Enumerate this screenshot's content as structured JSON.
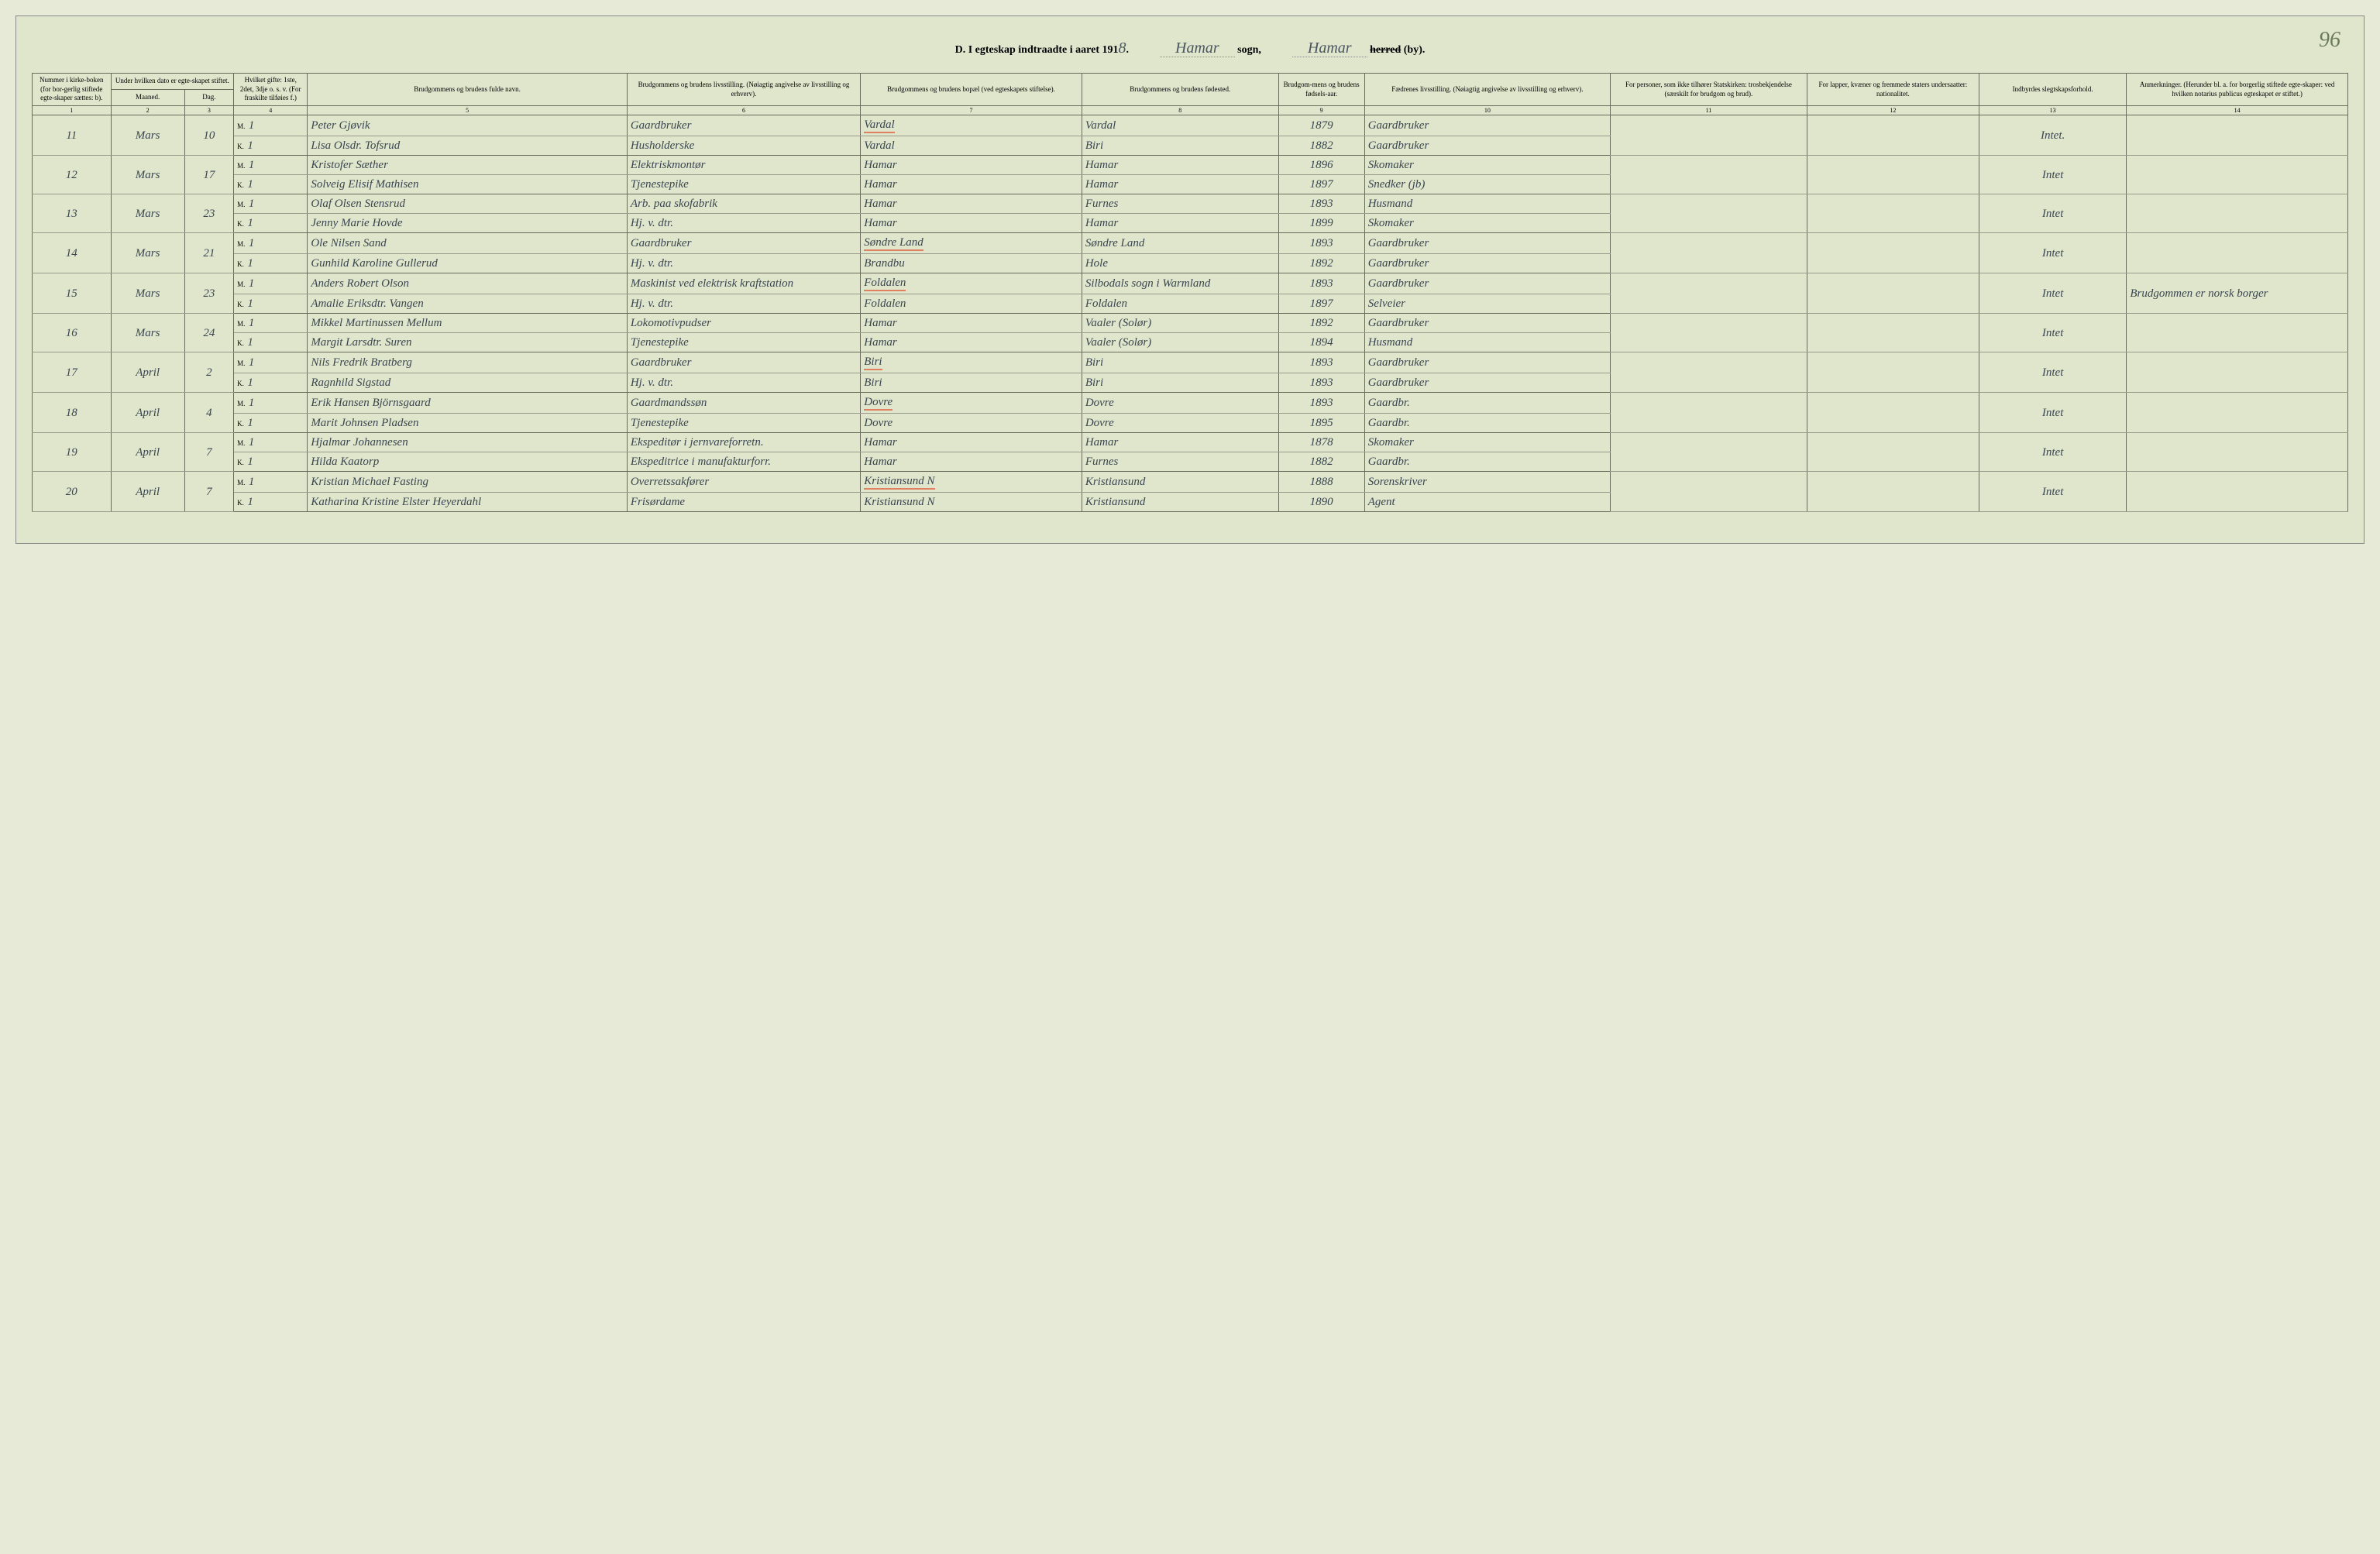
{
  "page_number": "96",
  "title": {
    "prefix": "D.  I egteskap indtraadte i aaret 191",
    "year_end": "8",
    "sogn_label": "sogn,",
    "sogn_value": "Hamar",
    "herred_label_strike": "herred",
    "herred_label_suffix": " (by).",
    "herred_value": "Hamar"
  },
  "headers": {
    "c1": "Nummer i kirke-boken (for bor-gerlig stiftede egte-skaper sættes: b).",
    "c2_3": "Under hvilken dato er egte-skapet stiftet.",
    "c2": "Maaned.",
    "c3": "Dag.",
    "c4": "Hvilket gifte: 1ste, 2det, 3dje o. s. v. (For fraskilte tilføies f.)",
    "c5": "Brudgommens og brudens fulde navn.",
    "c6": "Brudgommens og brudens livsstilling. (Nøiagtig angivelse av livsstilling og erhverv).",
    "c7": "Brudgommens og brudens bopæl (ved egteskapets stiftelse).",
    "c8": "Brudgommens og brudens fødested.",
    "c9": "Brudgom-mens og brudens fødsels-aar.",
    "c10": "Fædrenes livsstilling. (Nøiagtig angivelse av livsstilling og erhverv).",
    "c11": "For personer, som ikke tilhører Statskirken: trosbekjendelse (særskilt for brudgom og brud).",
    "c12": "For lapper, kvæner og fremmede staters undersaatter: nationalitet.",
    "c13": "Indbyrdes slegtskapsforhold.",
    "c14": "Anmerkninger. (Herunder bl. a. for borgerlig stiftede egte-skaper: ved hvilken notarius publicus egteskapet er stiftet.)"
  },
  "colnums": [
    "1",
    "2",
    "3",
    "4",
    "5",
    "6",
    "7",
    "8",
    "9",
    "10",
    "11",
    "12",
    "13",
    "14"
  ],
  "entries": [
    {
      "num": "11",
      "month": "Mars",
      "day": "10",
      "m": {
        "mk": "M.",
        "g": "1",
        "name": "Peter Gjøvik",
        "occ": "Gaardbruker",
        "res": "Vardal",
        "birth": "Vardal",
        "year": "1879",
        "father": "Gaardbruker"
      },
      "k": {
        "mk": "K.",
        "g": "1",
        "name": "Lisa Olsdr. Tofsrud",
        "occ": "Husholderske",
        "res": "Vardal",
        "birth": "Biri",
        "year": "1882",
        "father": "Gaardbruker"
      },
      "c13": "Intet.",
      "c14": ""
    },
    {
      "num": "12",
      "month": "Mars",
      "day": "17",
      "m": {
        "mk": "M.",
        "g": "1",
        "name": "Kristofer Sæther",
        "occ": "Elektriskmontør",
        "res": "Hamar",
        "birth": "Hamar",
        "year": "1896",
        "father": "Skomaker"
      },
      "k": {
        "mk": "K.",
        "g": "1",
        "name": "Solveig Elisif Mathisen",
        "occ": "Tjenestepike",
        "res": "Hamar",
        "birth": "Hamar",
        "year": "1897",
        "father": "Snedker (jb)"
      },
      "c13": "Intet",
      "c14": ""
    },
    {
      "num": "13",
      "month": "Mars",
      "day": "23",
      "m": {
        "mk": "M.",
        "g": "1",
        "name": "Olaf Olsen Stensrud",
        "occ": "Arb. paa skofabrik",
        "res": "Hamar",
        "birth": "Furnes",
        "year": "1893",
        "father": "Husmand"
      },
      "k": {
        "mk": "K.",
        "g": "1",
        "name": "Jenny Marie Hovde",
        "occ": "Hj. v. dtr.",
        "res": "Hamar",
        "birth": "Hamar",
        "year": "1899",
        "father": "Skomaker"
      },
      "c13": "Intet",
      "c14": ""
    },
    {
      "num": "14",
      "month": "Mars",
      "day": "21",
      "m": {
        "mk": "M.",
        "g": "1",
        "name": "Ole Nilsen Sand",
        "occ": "Gaardbruker",
        "res": "Søndre Land",
        "birth": "Søndre Land",
        "year": "1893",
        "father": "Gaardbruker"
      },
      "k": {
        "mk": "K.",
        "g": "1",
        "name": "Gunhild Karoline Gullerud",
        "occ": "Hj. v. dtr.",
        "res": "Brandbu",
        "birth": "Hole",
        "year": "1892",
        "father": "Gaardbruker"
      },
      "c13": "Intet",
      "c14": ""
    },
    {
      "num": "15",
      "month": "Mars",
      "day": "23",
      "m": {
        "mk": "M.",
        "g": "1",
        "name": "Anders Robert Olson",
        "occ": "Maskinist ved elektrisk kraftstation",
        "res": "Foldalen",
        "birth": "Silbodals sogn i Warmland",
        "year": "1893",
        "father": "Gaardbruker"
      },
      "k": {
        "mk": "K.",
        "g": "1",
        "name": "Amalie Eriksdtr. Vangen",
        "occ": "Hj. v. dtr.",
        "res": "Foldalen",
        "birth": "Foldalen",
        "year": "1897",
        "father": "Selveier"
      },
      "c13": "Intet",
      "c14": "Brudgommen er norsk borger"
    },
    {
      "num": "16",
      "month": "Mars",
      "day": "24",
      "m": {
        "mk": "M.",
        "g": "1",
        "name": "Mikkel Martinussen Mellum",
        "occ": "Lokomotivpudser",
        "res": "Hamar",
        "birth": "Vaaler (Solør)",
        "year": "1892",
        "father": "Gaardbruker"
      },
      "k": {
        "mk": "K.",
        "g": "1",
        "name": "Margit Larsdtr. Suren",
        "occ": "Tjenestepike",
        "res": "Hamar",
        "birth": "Vaaler (Solør)",
        "year": "1894",
        "father": "Husmand"
      },
      "c13": "Intet",
      "c14": ""
    },
    {
      "num": "17",
      "month": "April",
      "day": "2",
      "m": {
        "mk": "M.",
        "g": "1",
        "name": "Nils Fredrik Bratberg",
        "occ": "Gaardbruker",
        "res": "Biri",
        "birth": "Biri",
        "year": "1893",
        "father": "Gaardbruker"
      },
      "k": {
        "mk": "K.",
        "g": "1",
        "name": "Ragnhild Sigstad",
        "occ": "Hj. v. dtr.",
        "res": "Biri",
        "birth": "Biri",
        "year": "1893",
        "father": "Gaardbruker"
      },
      "c13": "Intet",
      "c14": ""
    },
    {
      "num": "18",
      "month": "April",
      "day": "4",
      "m": {
        "mk": "M.",
        "g": "1",
        "name": "Erik Hansen Björnsgaard",
        "occ": "Gaardmandssøn",
        "res": "Dovre",
        "birth": "Dovre",
        "year": "1893",
        "father": "Gaardbr."
      },
      "k": {
        "mk": "K.",
        "g": "1",
        "name": "Marit Johnsen Pladsen",
        "occ": "Tjenestepike",
        "res": "Dovre",
        "birth": "Dovre",
        "year": "1895",
        "father": "Gaardbr."
      },
      "c13": "Intet",
      "c14": ""
    },
    {
      "num": "19",
      "month": "April",
      "day": "7",
      "m": {
        "mk": "M.",
        "g": "1",
        "name": "Hjalmar Johannesen",
        "occ": "Ekspeditør i jernvareforretn.",
        "res": "Hamar",
        "birth": "Hamar",
        "year": "1878",
        "father": "Skomaker"
      },
      "k": {
        "mk": "K.",
        "g": "1",
        "name": "Hilda Kaatorp",
        "occ": "Ekspeditrice i manufakturforr.",
        "res": "Hamar",
        "birth": "Furnes",
        "year": "1882",
        "father": "Gaardbr."
      },
      "c13": "Intet",
      "c14": ""
    },
    {
      "num": "20",
      "month": "April",
      "day": "7",
      "m": {
        "mk": "M.",
        "g": "1",
        "name": "Kristian Michael Fasting",
        "occ": "Overretssakfører",
        "res": "Kristiansund N",
        "birth": "Kristiansund",
        "year": "1888",
        "father": "Sorenskriver"
      },
      "k": {
        "mk": "K.",
        "g": "1",
        "name": "Katharina Kristine Elster Heyerdahl",
        "occ": "Frisørdame",
        "res": "Kristiansund N",
        "birth": "Kristiansund",
        "year": "1890",
        "father": "Agent"
      },
      "c13": "Intet",
      "c14": ""
    }
  ]
}
